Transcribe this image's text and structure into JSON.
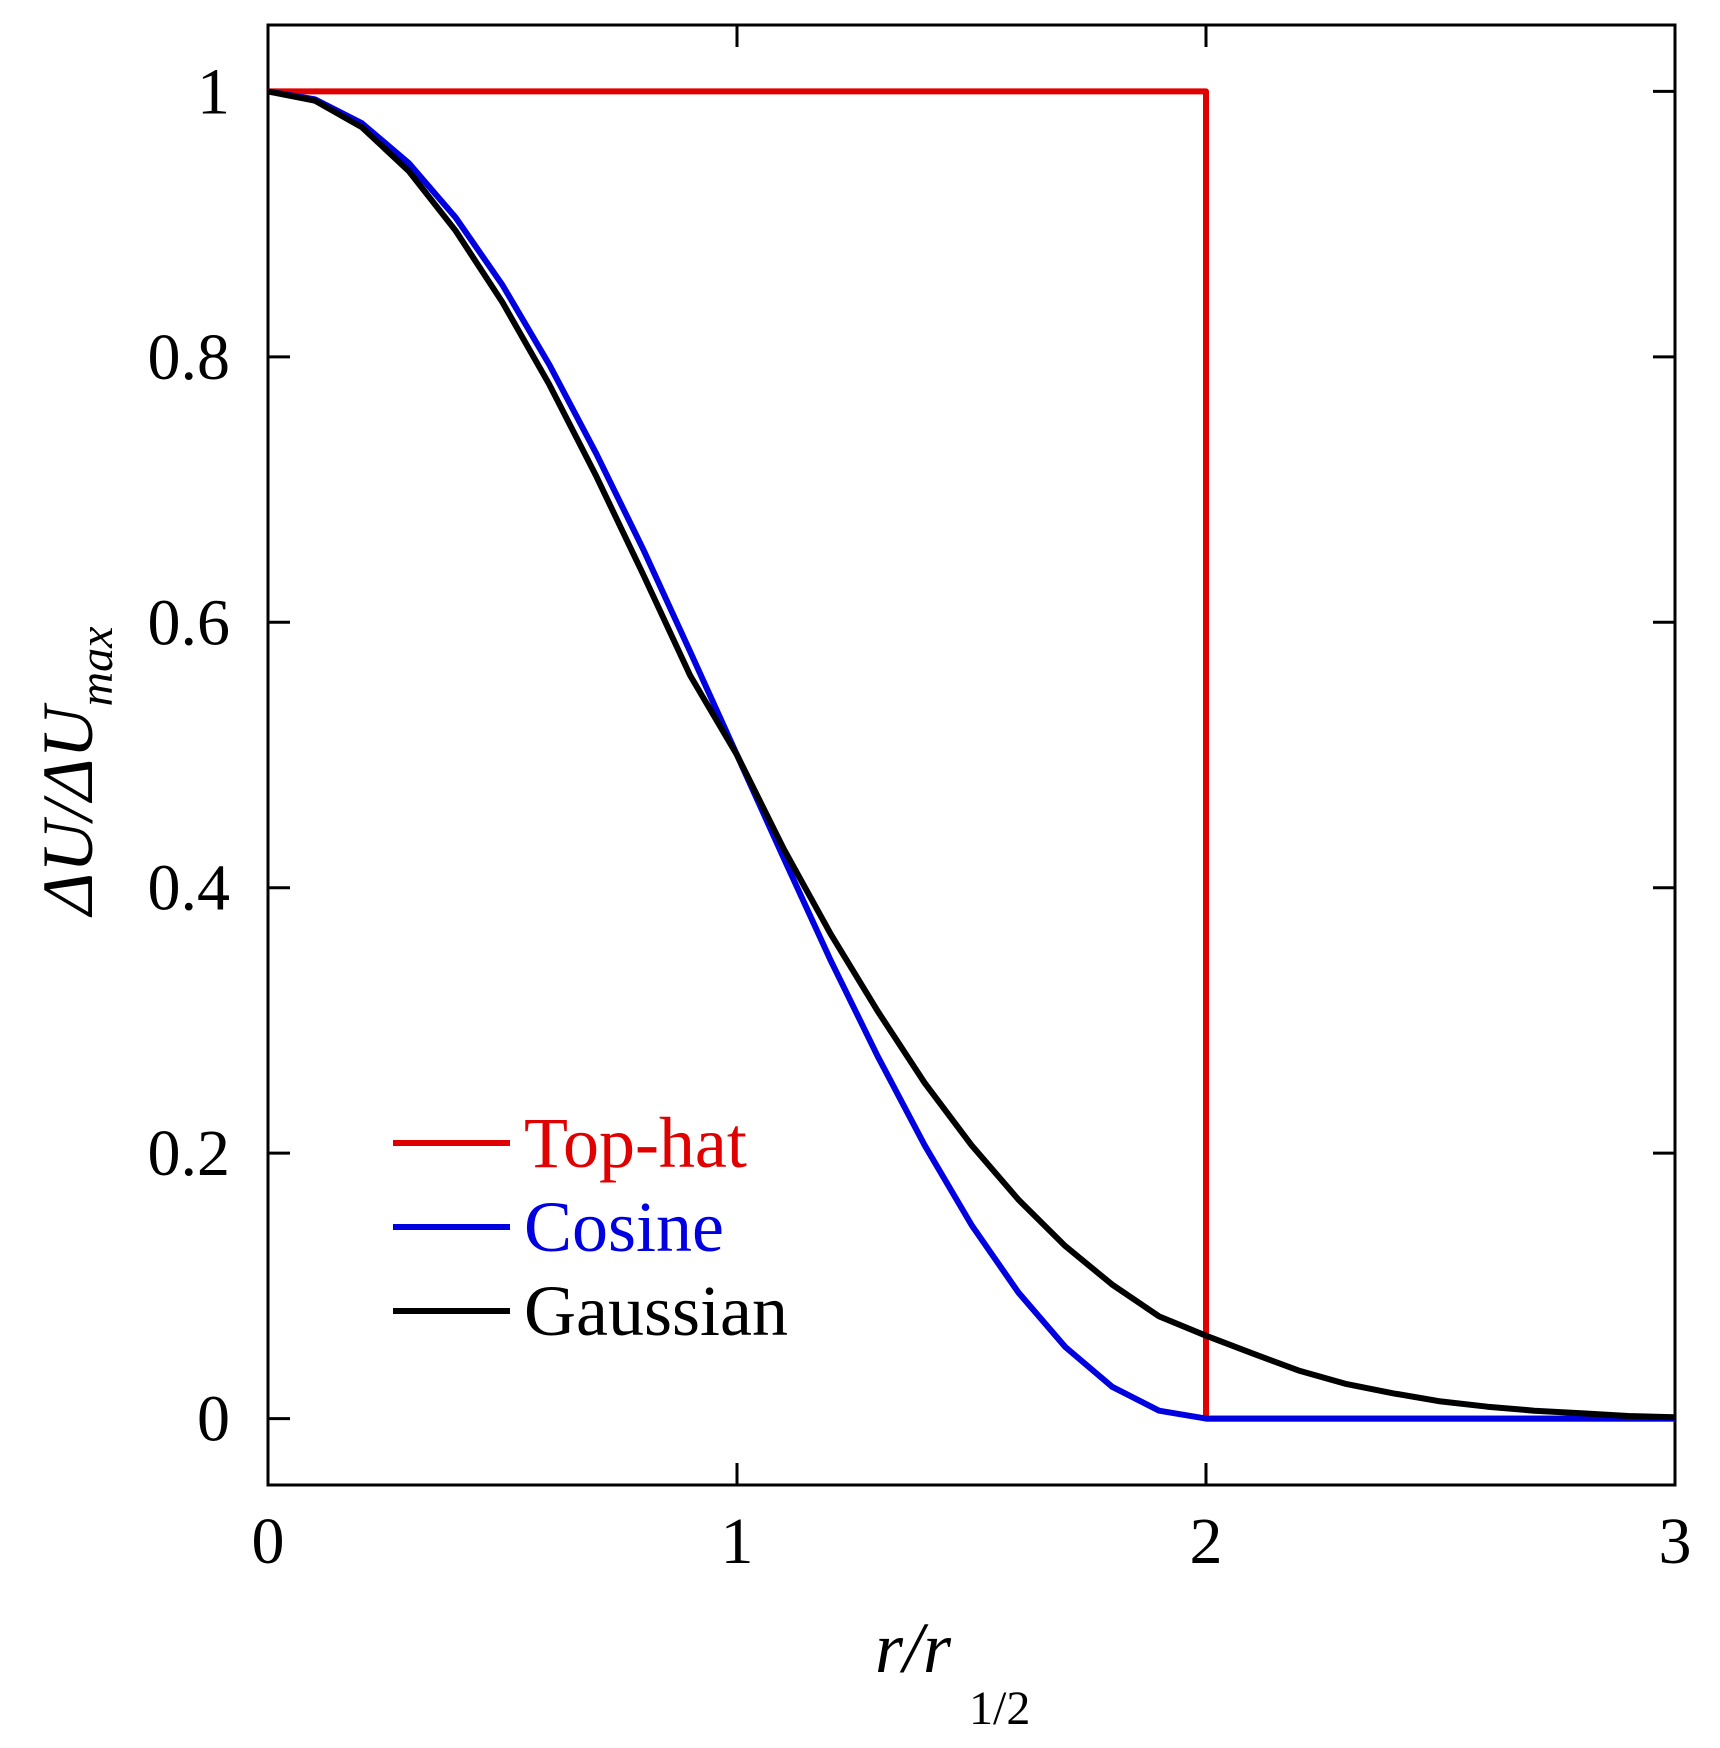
{
  "chart_data": {
    "type": "line",
    "title": "",
    "xlabel": {
      "main": "r/r",
      "subscript": "1/2"
    },
    "ylabel": {
      "main": "ΔU/ΔU",
      "subscript": "max"
    },
    "xlim": [
      0,
      3
    ],
    "ylim": [
      -0.05,
      1.05
    ],
    "x_ticks": [
      "0",
      "1",
      "2",
      "3"
    ],
    "x_tick_values": [
      0,
      1,
      2,
      3
    ],
    "y_ticks": [
      "0",
      "0.2",
      "0.4",
      "0.6",
      "0.8",
      "1"
    ],
    "y_tick_values": [
      0,
      0.2,
      0.4,
      0.6,
      0.8,
      1
    ],
    "grid": false,
    "legend_position": "lower-left",
    "series": [
      {
        "name": "Top-hat",
        "color": "#e00000",
        "x": [
          0,
          2,
          2,
          3
        ],
        "y": [
          1,
          1,
          0,
          0
        ]
      },
      {
        "name": "Cosine",
        "color": "#0000e0",
        "x": [
          0,
          0.1,
          0.2,
          0.3,
          0.4,
          0.5,
          0.6,
          0.7,
          0.8,
          0.9,
          1.0,
          1.1,
          1.2,
          1.3,
          1.4,
          1.5,
          1.6,
          1.7,
          1.8,
          1.9,
          2.0,
          3.0
        ],
        "y": [
          1,
          0.994,
          0.976,
          0.946,
          0.905,
          0.854,
          0.794,
          0.727,
          0.655,
          0.578,
          0.5,
          0.422,
          0.345,
          0.273,
          0.206,
          0.146,
          0.095,
          0.054,
          0.024,
          0.006,
          0,
          0
        ]
      },
      {
        "name": "Gaussian",
        "color": "#000000",
        "x": [
          0,
          0.1,
          0.2,
          0.3,
          0.4,
          0.5,
          0.6,
          0.7,
          0.8,
          0.9,
          1.0,
          1.1,
          1.2,
          1.3,
          1.4,
          1.5,
          1.6,
          1.7,
          1.8,
          1.9,
          2.0,
          2.1,
          2.2,
          2.3,
          2.4,
          2.5,
          2.6,
          2.7,
          2.8,
          2.9,
          3.0
        ],
        "y": [
          1,
          0.993,
          0.973,
          0.94,
          0.895,
          0.841,
          0.779,
          0.71,
          0.636,
          0.56,
          0.5,
          0.429,
          0.365,
          0.307,
          0.253,
          0.206,
          0.165,
          0.13,
          0.101,
          0.077,
          0.0625,
          0.049,
          0.036,
          0.026,
          0.019,
          0.013,
          0.009,
          0.006,
          0.004,
          0.002,
          0.001
        ]
      }
    ]
  }
}
